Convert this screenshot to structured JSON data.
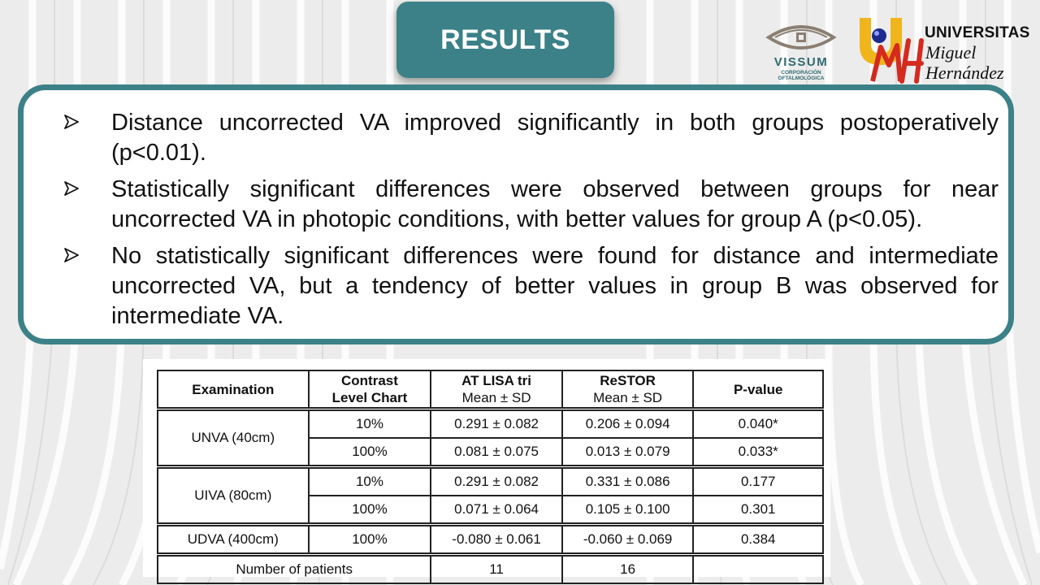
{
  "slide": {
    "title": "RESULTS",
    "logos": {
      "vissum_name": "VISSUM",
      "vissum_sub_1": "CORPORACIÓN",
      "vissum_sub_2": "OFTALMOLÓGICA",
      "umh_line1": "UNIVERSITAS",
      "umh_line2": "Miguel",
      "umh_line3": "Hernández"
    },
    "colors": {
      "accent": "#3b8187",
      "background": "#ececec",
      "umh_red": "#d42a1f",
      "umh_yellow": "#f1b51c",
      "umh_blue": "#1d2b8f"
    }
  },
  "bullets": [
    "Distance uncorrected VA improved significantly in both groups postoperatively (p<0.01).",
    "Statistically significant differences were observed between groups for near uncorrected VA in photopic conditions, with better values for group A (p<0.05).",
    "No statistically significant differences were found for distance and intermediate uncorrected VA, but a tendency of better values in group B was observed for intermediate VA."
  ],
  "table": {
    "headers": {
      "examination": "Examination",
      "contrast_1": "Contrast",
      "contrast_2": "Level Chart",
      "lisa_1": "AT LISA tri",
      "lisa_2": "Mean ± SD",
      "restor_1": "ReSTOR",
      "restor_2": "Mean ± SD",
      "pvalue": "P-value"
    },
    "rows": [
      {
        "exam": "UNVA (40cm)",
        "contrast": "10%",
        "lisa": "0.291 ± 0.082",
        "restor": "0.206 ± 0.094",
        "p": "0.040*"
      },
      {
        "exam": "",
        "contrast": "100%",
        "lisa": "0.081 ± 0.075",
        "restor": "0.013 ± 0.079",
        "p": "0.033*"
      },
      {
        "exam": "UIVA (80cm)",
        "contrast": "10%",
        "lisa": "0.291 ± 0.082",
        "restor": "0.331 ± 0.086",
        "p": "0.177"
      },
      {
        "exam": "",
        "contrast": "100%",
        "lisa": "0.071 ± 0.064",
        "restor": "0.105 ± 0.100",
        "p": "0.301"
      },
      {
        "exam": "UDVA (400cm)",
        "contrast": "100%",
        "lisa": "-0.080 ± 0.061",
        "restor": "-0.060 ± 0.069",
        "p": "0.384"
      }
    ],
    "footer": {
      "label": "Number of patients",
      "lisa": "11",
      "restor": "16",
      "p": ""
    }
  }
}
